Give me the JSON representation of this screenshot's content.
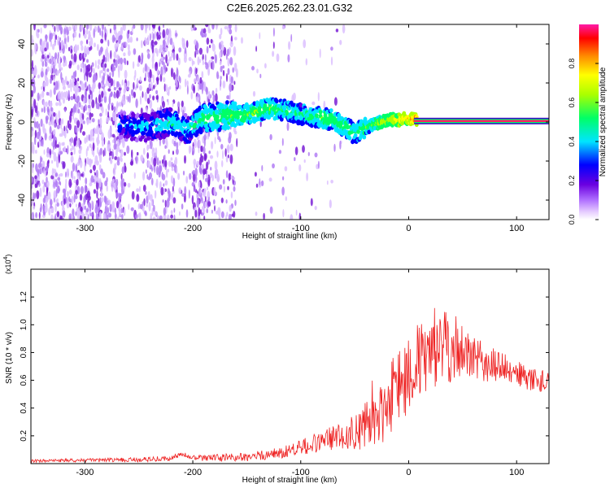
{
  "figure": {
    "title": "C2E6.2025.262.23.01.G32"
  },
  "chart_data": [
    {
      "type": "heatmap",
      "panel": "spectrogram",
      "title": "C2E6.2025.262.23.01.G32",
      "xlabel": "Height of straight line (km)",
      "ylabel": "Frequency (Hz)",
      "xlim": [
        -350,
        130
      ],
      "ylim": [
        -50,
        50
      ],
      "x_ticks": [
        -300,
        -200,
        -100,
        0,
        100
      ],
      "x_tick_labels": [
        "-300",
        "-200",
        "-100",
        "0",
        "100"
      ],
      "y_ticks": [
        -40,
        -20,
        0,
        20,
        40
      ],
      "y_tick_labels": [
        "-40",
        "-20",
        "0",
        "20",
        "40"
      ],
      "colorbar": {
        "label": "Normalized spectral amplitude",
        "range": [
          0,
          1
        ],
        "ticks": [
          0.0,
          0.2,
          0.4,
          0.6,
          0.8
        ],
        "tick_labels": [
          "0.0",
          "0.2",
          "0.4",
          "0.6",
          "0.8"
        ]
      },
      "signal_track": {
        "description_values": "center frequency (Hz) vs height (km)",
        "x": [
          -265,
          -240,
          -220,
          -205,
          -190,
          -170,
          -150,
          -130,
          -115,
          -100,
          -90,
          -80,
          -70,
          -60,
          -50,
          -40,
          -30,
          -20,
          -10,
          0,
          10,
          50,
          100,
          130
        ],
        "y": [
          -2,
          -3,
          0,
          -4,
          2,
          3,
          4,
          7,
          6,
          4,
          3,
          2,
          1,
          -2,
          -6,
          -3,
          -1,
          1,
          1,
          2,
          1,
          0.5,
          0.5,
          0.5
        ],
        "amplitude": [
          0.28,
          0.32,
          0.4,
          0.35,
          0.45,
          0.5,
          0.5,
          0.5,
          0.45,
          0.42,
          0.45,
          0.5,
          0.5,
          0.48,
          0.45,
          0.5,
          0.55,
          0.6,
          0.7,
          0.75,
          0.85,
          0.9,
          0.9,
          0.9
        ]
      }
    },
    {
      "type": "line",
      "panel": "snr",
      "xlabel": "Height of straight line (km)",
      "ylabel": "SNR (10 * v/v)",
      "y_scale_label": "(x10",
      "y_scale_exponent": "4",
      "y_scale_suffix": ")",
      "xlim": [
        -350,
        130
      ],
      "ylim": [
        0,
        1.4
      ],
      "x_ticks": [
        -300,
        -200,
        -100,
        0,
        100
      ],
      "x_tick_labels": [
        "-300",
        "-200",
        "-100",
        "0",
        "100"
      ],
      "y_ticks": [
        0.2,
        0.4,
        0.6,
        0.8,
        1.0,
        1.2
      ],
      "y_tick_labels": [
        "0.2",
        "0.4",
        "0.6",
        "0.8",
        "1.0",
        "1.2"
      ],
      "series": [
        {
          "name": "SNR",
          "color": "#ee2222",
          "envelope_x": [
            -350,
            -300,
            -250,
            -220,
            -210,
            -200,
            -150,
            -120,
            -100,
            -80,
            -60,
            -40,
            -30,
            -20,
            -10,
            0,
            10,
            20,
            30,
            40,
            50,
            60,
            70,
            80,
            90,
            100,
            110,
            120,
            130
          ],
          "envelope_y": [
            0.02,
            0.025,
            0.03,
            0.04,
            0.07,
            0.04,
            0.05,
            0.08,
            0.12,
            0.17,
            0.22,
            0.28,
            0.34,
            0.46,
            0.62,
            0.7,
            0.76,
            0.8,
            0.86,
            0.86,
            0.82,
            0.78,
            0.74,
            0.72,
            0.7,
            0.66,
            0.63,
            0.61,
            0.58
          ],
          "noise_x": [
            -350,
            -200,
            -120,
            -60,
            -30,
            -10,
            0,
            20,
            40,
            60,
            90,
            130
          ],
          "noise_y": [
            0.01,
            0.02,
            0.04,
            0.1,
            0.22,
            0.3,
            0.32,
            0.26,
            0.26,
            0.16,
            0.1,
            0.08
          ]
        }
      ]
    }
  ],
  "colors": {
    "axis": "#000000",
    "noise": "#7a1fd6",
    "line": "#ee2222",
    "background": "#ffffff"
  }
}
